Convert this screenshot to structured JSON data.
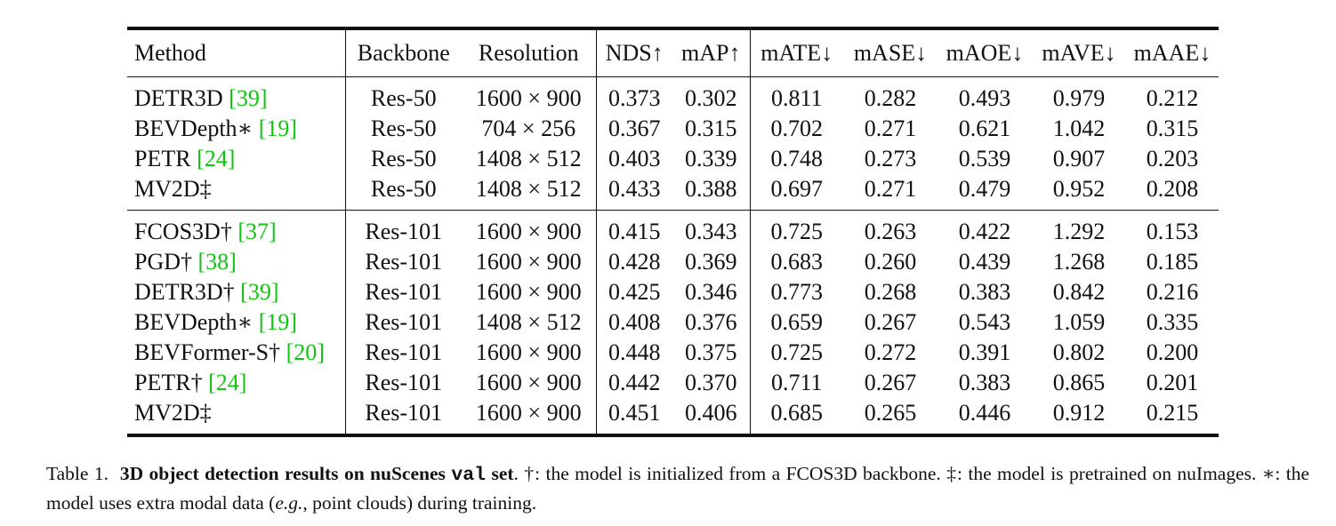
{
  "table": {
    "headers": [
      "Method",
      "Backbone",
      "Resolution",
      "NDS↑",
      "mAP↑",
      "mATE↓",
      "mASE↓",
      "mAOE↓",
      "mAVE↓",
      "mAAE↓"
    ],
    "groups": [
      {
        "rows": [
          {
            "method": "DETR3D ",
            "cite": "[39]",
            "backbone": "Res-50",
            "resolution": "1600 × 900",
            "nds": "0.373",
            "map": "0.302",
            "mate": "0.811",
            "mase": "0.282",
            "maoe": "0.493",
            "mave": "0.979",
            "maae": "0.212",
            "bold": false
          },
          {
            "method": "BEVDepth∗ ",
            "cite": "[19]",
            "backbone": "Res-50",
            "resolution": "704 × 256",
            "nds": "0.367",
            "map": "0.315",
            "mate": "0.702",
            "mase": "0.271",
            "maoe": "0.621",
            "mave": "1.042",
            "maae": "0.315",
            "bold": false
          },
          {
            "method": "PETR ",
            "cite": "[24]",
            "backbone": "Res-50",
            "resolution": "1408 × 512",
            "nds": "0.403",
            "map": "0.339",
            "mate": "0.748",
            "mase": "0.273",
            "maoe": "0.539",
            "mave": "0.907",
            "maae": "0.203",
            "bold": false
          },
          {
            "method": "MV2D‡",
            "cite": "",
            "backbone": "Res-50",
            "resolution": "1408 × 512",
            "nds": "0.433",
            "map": "0.388",
            "mate": "0.697",
            "mase": "0.271",
            "maoe": "0.479",
            "mave": "0.952",
            "maae": "0.208",
            "bold": true
          }
        ]
      },
      {
        "rows": [
          {
            "method": "FCOS3D† ",
            "cite": "[37]",
            "backbone": "Res-101",
            "resolution": "1600 × 900",
            "nds": "0.415",
            "map": "0.343",
            "mate": "0.725",
            "mase": "0.263",
            "maoe": "0.422",
            "mave": "1.292",
            "maae": "0.153",
            "bold": false
          },
          {
            "method": "PGD† ",
            "cite": "[38]",
            "backbone": "Res-101",
            "resolution": "1600 × 900",
            "nds": "0.428",
            "map": "0.369",
            "mate": "0.683",
            "mase": "0.260",
            "maoe": "0.439",
            "mave": "1.268",
            "maae": "0.185",
            "bold": false
          },
          {
            "method": "DETR3D† ",
            "cite": "[39]",
            "backbone": "Res-101",
            "resolution": "1600 × 900",
            "nds": "0.425",
            "map": "0.346",
            "mate": "0.773",
            "mase": "0.268",
            "maoe": "0.383",
            "mave": "0.842",
            "maae": "0.216",
            "bold": false
          },
          {
            "method": "BEVDepth∗ ",
            "cite": "[19]",
            "backbone": "Res-101",
            "resolution": "1408 × 512",
            "nds": "0.408",
            "map": "0.376",
            "mate": "0.659",
            "mase": "0.267",
            "maoe": "0.543",
            "mave": "1.059",
            "maae": "0.335",
            "bold": false
          },
          {
            "method": "BEVFormer-S† ",
            "cite": "[20]",
            "backbone": "Res-101",
            "resolution": "1600 × 900",
            "nds": "0.448",
            "map": "0.375",
            "mate": "0.725",
            "mase": "0.272",
            "maoe": "0.391",
            "mave": "0.802",
            "maae": "0.200",
            "bold": false
          },
          {
            "method": "PETR† ",
            "cite": "[24]",
            "backbone": "Res-101",
            "resolution": "1600 × 900",
            "nds": "0.442",
            "map": "0.370",
            "mate": "0.711",
            "mase": "0.267",
            "maoe": "0.383",
            "mave": "0.865",
            "maae": "0.201",
            "bold": false
          },
          {
            "method": "MV2D‡",
            "cite": "",
            "backbone": "Res-101",
            "resolution": "1600 × 900",
            "nds": "0.451",
            "map": "0.406",
            "mate": "0.685",
            "mase": "0.265",
            "maoe": "0.446",
            "mave": "0.912",
            "maae": "0.215",
            "bold": true
          }
        ]
      }
    ]
  },
  "caption": {
    "label": "Table 1.",
    "title_bold": "3D object detection results on nuScenes",
    "title_mono": "val",
    "title_end": "set",
    "body_1": ".  †: the model is initialized from a FCOS3D backbone.  ‡: the model is pretrained on nuImages. ∗: the model uses extra modal data (",
    "body_italic": "e.g.",
    "body_2": ", point clouds) during training."
  },
  "colors": {
    "citation": "#12c412",
    "text": "#111111"
  }
}
